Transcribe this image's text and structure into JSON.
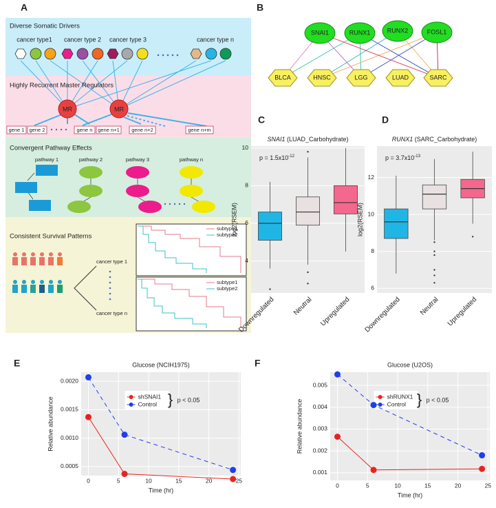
{
  "panel_a": {
    "label": "A",
    "sections": [
      {
        "title": "Diverse Somatic Drivers",
        "labels": [
          "cancer type1",
          "cancer type 2",
          "cancer type 3",
          "cancer type n"
        ]
      },
      {
        "title": "Highly Recurrent Master Regulators",
        "regulators": [
          "MR",
          "MR"
        ],
        "genes": [
          "gene 1",
          "gene 2",
          "gene n",
          "gene n+1",
          "gene n+2",
          "gene n+m"
        ]
      },
      {
        "title": "Convergent Pathway Effects",
        "labels": [
          "pathway 1",
          "pathway 2",
          "pathway 3",
          "pathway n"
        ]
      },
      {
        "title": "Consistent Survival Patterns",
        "labels": [
          "cancer type 1",
          "cancer type n"
        ],
        "legends": [
          [
            "subtype1",
            "subtype2"
          ],
          [
            "subtype1",
            "subtype2"
          ]
        ]
      }
    ]
  },
  "panel_b": {
    "label": "B",
    "regulators": [
      "SNAI1",
      "RUNX1",
      "RUNX2",
      "FOSL1"
    ],
    "cancers": [
      "BLCA",
      "HNSC",
      "LGG",
      "LUAD",
      "SARC"
    ]
  },
  "chart_data": [
    {
      "type": "box",
      "panel_label": "C",
      "title_gene": "SNAI1",
      "title_rest": " (LUAD_Carbohydrate)",
      "ylabel": "log2(RSEM)",
      "annotation": "p = 1.5x10",
      "annotation_exp": "-12",
      "categories": [
        "Downregulated",
        "Neutral",
        "Upregulated"
      ],
      "colors": [
        "#1fb6e6",
        "#e9e1e1",
        "#f4688d"
      ],
      "label_colors": [
        "#1fb6e6",
        "#777777",
        "#f4688d"
      ],
      "ylim": [
        2.3,
        10.1
      ],
      "yticks": [
        4,
        6,
        8,
        10
      ],
      "grid": true,
      "boxes": [
        {
          "low": 3.6,
          "q1": 5.1,
          "median": 6.0,
          "q3": 6.6,
          "high": 8.2,
          "outliers": [
            2.5
          ]
        },
        {
          "low": 3.8,
          "q1": 5.9,
          "median": 6.6,
          "q3": 7.4,
          "high": 9.5,
          "outliers": [
            9.8,
            3.4,
            2.8
          ]
        },
        {
          "low": 4.5,
          "q1": 6.5,
          "median": 7.1,
          "q3": 8.0,
          "high": 10.0,
          "outliers": []
        }
      ]
    },
    {
      "type": "box",
      "panel_label": "D",
      "title_gene": "RUNX1",
      "title_rest": " (SARC_Carbohydrate)",
      "ylabel": "log2(RSEM)",
      "annotation": "p = 3.7x10",
      "annotation_exp": "-13",
      "categories": [
        "Downregulated",
        "Neutral",
        "Upregulated"
      ],
      "colors": [
        "#1fb6e6",
        "#e9e1e1",
        "#f4688d"
      ],
      "label_colors": [
        "#1fb6e6",
        "#777777",
        "#f4688d"
      ],
      "ylim": [
        5.75,
        13.7
      ],
      "yticks": [
        6,
        8,
        10,
        12
      ],
      "grid": true,
      "boxes": [
        {
          "low": 6.8,
          "q1": 8.7,
          "median": 9.6,
          "q3": 10.3,
          "high": 12.1,
          "outliers": []
        },
        {
          "low": 8.6,
          "q1": 10.3,
          "median": 11.1,
          "q3": 11.6,
          "high": 13.0,
          "outliers": [
            8.5,
            8.0,
            7.8,
            7.0,
            6.7,
            6.3
          ]
        },
        {
          "low": 9.5,
          "q1": 10.9,
          "median": 11.4,
          "q3": 11.9,
          "high": 13.4,
          "outliers": [
            8.8
          ]
        }
      ]
    },
    {
      "type": "line",
      "panel_label": "E",
      "title": "Glucose (NCIH1975)",
      "xlabel": "Time (hr)",
      "ylabel": "Relative abundance",
      "annotation": "p < 0.05",
      "x": [
        0,
        6,
        24
      ],
      "xlim": [
        -1.2,
        25.3
      ],
      "xticks": [
        0,
        5,
        10,
        15,
        20,
        25
      ],
      "ylim": [
        0.00034,
        0.00216
      ],
      "yticks": [
        0.0005,
        {
          "value": 0.001,
          "label": "0.0010"
        },
        0.0015,
        {
          "value": 0.002,
          "label": "0.0020"
        }
      ],
      "grid": true,
      "series": [
        {
          "name": "shSNAI1",
          "color": "#e8231f",
          "dashed": false,
          "values": [
            0.00137,
            0.00037,
            0.00028
          ]
        },
        {
          "name": "Control",
          "color": "#1f3fe8",
          "dashed": true,
          "values": [
            0.00207,
            0.00106,
            0.00044
          ]
        }
      ]
    },
    {
      "type": "line",
      "panel_label": "F",
      "title": "Glucose (U2OS)",
      "xlabel": "Time (hr)",
      "ylabel": "Relative abundance",
      "annotation": "p < 0.05",
      "x": [
        0,
        6,
        24
      ],
      "xlim": [
        -1.2,
        25.3
      ],
      "xticks": [
        0,
        5,
        10,
        15,
        20,
        25
      ],
      "ylim": [
        0.00065,
        0.0056
      ],
      "yticks": [
        0.001,
        0.002,
        0.003,
        0.004,
        0.005
      ],
      "grid": true,
      "series": [
        {
          "name": "shRUNX1",
          "color": "#e8231f",
          "dashed": false,
          "values": [
            0.00265,
            0.00113,
            0.00118
          ]
        },
        {
          "name": "Control",
          "color": "#1f3fe8",
          "dashed": true,
          "values": [
            0.0055,
            0.0041,
            0.0018
          ]
        }
      ]
    }
  ]
}
